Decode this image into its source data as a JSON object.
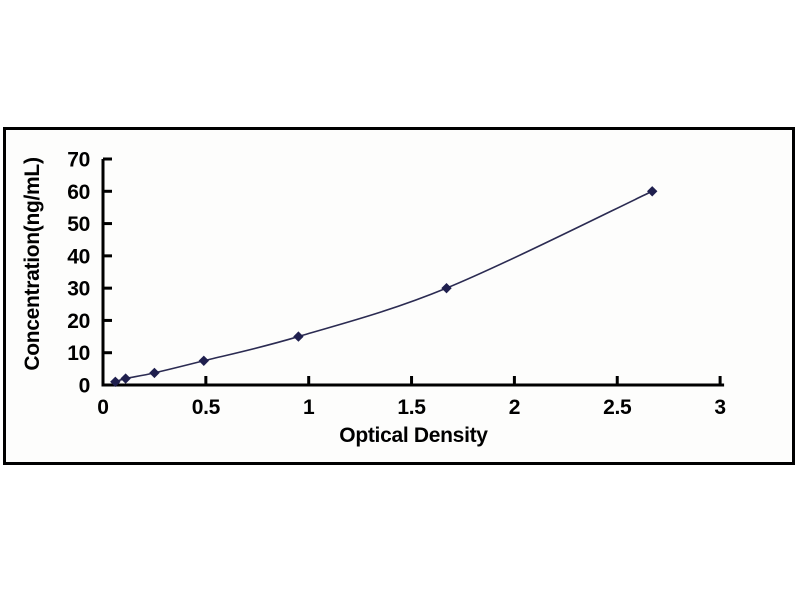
{
  "chart_data": {
    "type": "scatter",
    "connected": true,
    "smooth_line": true,
    "title": "",
    "xlabel": "Optical Density",
    "ylabel": "Concentration(ng/mL)",
    "x": [
      0.06,
      0.11,
      0.25,
      0.49,
      0.95,
      1.67,
      2.67
    ],
    "y": [
      1,
      2,
      3.75,
      7.5,
      15,
      30,
      60
    ],
    "xlim": [
      0,
      3
    ],
    "ylim": [
      0,
      70
    ],
    "x_ticks": [
      0,
      0.5,
      1,
      1.5,
      2,
      2.5,
      3
    ],
    "x_tick_labels": [
      "0",
      "0.5",
      "1",
      "1.5",
      "2",
      "2.5",
      "3"
    ],
    "y_ticks": [
      0,
      10,
      20,
      30,
      40,
      50,
      60,
      70
    ],
    "y_tick_labels": [
      "0",
      "10",
      "20",
      "30",
      "40",
      "50",
      "60",
      "70"
    ],
    "grid": false,
    "legend_position": "none",
    "marker": "diamond",
    "colors": {
      "marker": "#1f1f4e",
      "line": "#2b2b52",
      "axis": "#000000",
      "text": "#000000",
      "frame_border": "#000000",
      "background": "#ffffff"
    }
  }
}
